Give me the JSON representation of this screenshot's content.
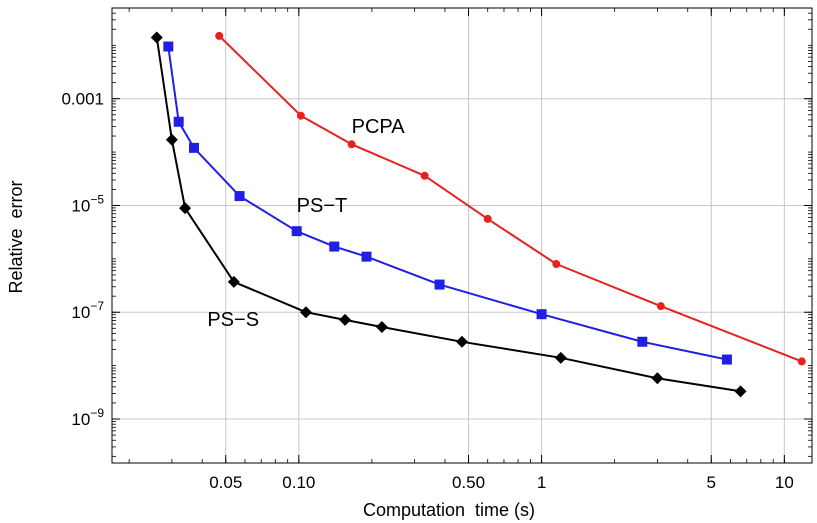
{
  "chart_data": {
    "type": "line",
    "title": "",
    "xlabel": "Computation  time (s)",
    "ylabel": "Relative  error",
    "xscale": "log",
    "yscale": "log",
    "xlim": [
      0.017,
      13
    ],
    "ylim": [
      1.5e-10,
      0.05
    ],
    "grid": true,
    "legend": "inline labels",
    "x_ticks": [
      {
        "value": 0.05,
        "label": "0.05"
      },
      {
        "value": 0.1,
        "label": "0.10"
      },
      {
        "value": 0.5,
        "label": "0.50"
      },
      {
        "value": 1,
        "label": "1"
      },
      {
        "value": 5,
        "label": "5"
      },
      {
        "value": 10,
        "label": "10"
      }
    ],
    "y_ticks": [
      {
        "value": 0.001,
        "label": "0.001",
        "base": "",
        "exp": ""
      },
      {
        "value": 1e-05,
        "label": "",
        "base": "10",
        "exp": "−5"
      },
      {
        "value": 1e-07,
        "label": "",
        "base": "10",
        "exp": "−7"
      },
      {
        "value": 1e-09,
        "label": "",
        "base": "10",
        "exp": "−9"
      }
    ],
    "series": [
      {
        "name": "PCPA",
        "color": "#e8211d",
        "marker": "circle",
        "label_at": [
          0.165,
          0.00023
        ],
        "x": [
          0.047,
          0.102,
          0.165,
          0.33,
          0.6,
          1.15,
          3.1,
          11.8
        ],
        "y": [
          0.015,
          0.00048,
          0.00014,
          3.6e-05,
          5.6e-06,
          8e-07,
          1.3e-07,
          1.2e-08
        ]
      },
      {
        "name": "PS−T",
        "color": "#1f1fe6",
        "marker": "square",
        "label_at": [
          0.098,
          7.6e-06
        ],
        "x": [
          0.029,
          0.032,
          0.037,
          0.057,
          0.098,
          0.14,
          0.19,
          0.38,
          1.0,
          2.6,
          5.8
        ],
        "y": [
          0.0095,
          0.00037,
          0.00012,
          1.5e-05,
          3.3e-06,
          1.7e-06,
          1.1e-06,
          3.3e-07,
          9.2e-08,
          2.8e-08,
          1.3e-08
        ]
      },
      {
        "name": "PS−S",
        "color": "#000000",
        "marker": "diamond",
        "label_at": [
          0.042,
          5.5e-08
        ],
        "x": [
          0.026,
          0.03,
          0.034,
          0.054,
          0.107,
          0.155,
          0.22,
          0.47,
          1.2,
          3.0,
          6.6
        ],
        "y": [
          0.014,
          0.00017,
          8.9e-06,
          3.7e-07,
          1e-07,
          7.2e-08,
          5.3e-08,
          2.8e-08,
          1.4e-08,
          5.8e-09,
          3.3e-09
        ]
      }
    ]
  }
}
